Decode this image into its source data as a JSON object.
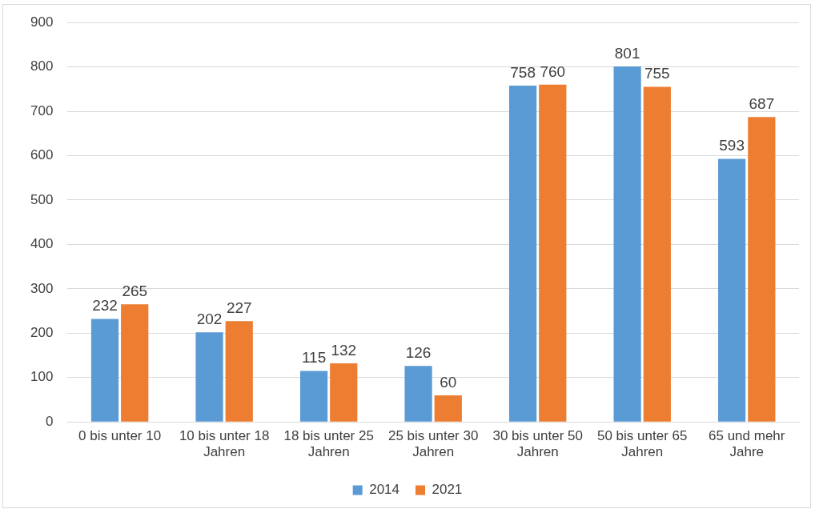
{
  "chart_data": {
    "type": "bar",
    "categories": [
      "0 bis unter 10",
      "10 bis unter 18 Jahren",
      "18 bis unter 25 Jahren",
      "25 bis unter 30 Jahren",
      "30 bis unter 50 Jahren",
      "50 bis unter 65 Jahren",
      "65 und mehr Jahre"
    ],
    "series": [
      {
        "name": "2014",
        "color": "#5b9bd5",
        "values": [
          232,
          202,
          115,
          126,
          758,
          801,
          593
        ]
      },
      {
        "name": "2021",
        "color": "#ed7d31",
        "values": [
          265,
          227,
          132,
          60,
          760,
          755,
          687
        ]
      }
    ],
    "ylim": [
      0,
      900
    ],
    "yticks": [
      0,
      100,
      200,
      300,
      400,
      500,
      600,
      700,
      800,
      900
    ],
    "grid": "y",
    "legend": "bottom",
    "data_labels": true
  }
}
